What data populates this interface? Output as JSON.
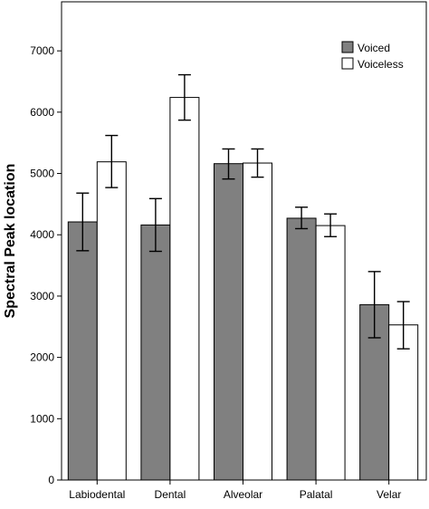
{
  "chart_data": {
    "type": "bar",
    "title": "",
    "xlabel": "",
    "ylabel": "Spectral Peak location",
    "ylim": [
      0,
      7800
    ],
    "yticks": [
      0,
      1000,
      2000,
      3000,
      4000,
      5000,
      6000,
      7000
    ],
    "categories": [
      "Labiodental",
      "Dental",
      "Alveolar",
      "Palatal",
      "Velar"
    ],
    "series": [
      {
        "name": "Voiced",
        "color": "#808080",
        "values": [
          4210,
          4160,
          5160,
          4270,
          2860
        ],
        "error_low": [
          3740,
          3730,
          4910,
          4100,
          2320
        ],
        "error_high": [
          4680,
          4590,
          5400,
          4450,
          3400
        ]
      },
      {
        "name": "Voiceless",
        "color": "#ffffff",
        "values": [
          5190,
          6240,
          5170,
          4150,
          2530
        ],
        "error_low": [
          4770,
          5870,
          4940,
          3970,
          2140
        ],
        "error_high": [
          5620,
          6610,
          5400,
          4340,
          2910
        ]
      }
    ],
    "grid": false,
    "legend_position": "top-right",
    "error_bars": true
  }
}
